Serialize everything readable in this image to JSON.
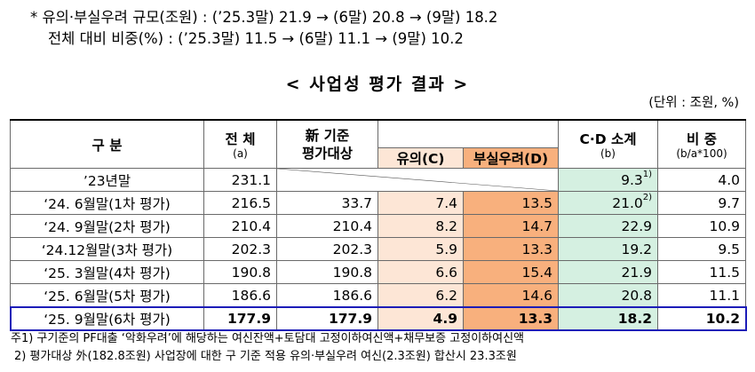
{
  "summary": {
    "line1": "*  유의·부실우려 규모(조원) : (’25.3말) 21.9 → (6말) 20.8 → (9말) 18.2",
    "line2": "전체 대비 비중(%) : (’25.3말) 11.5 → (6말) 11.1 → (9말) 10.2"
  },
  "title": "< 사업성 평가 결과 >",
  "unit": "(단위 : 조원, %)",
  "table": {
    "headers": {
      "gubun": "구 분",
      "total": "전 체",
      "total_sub": "(a)",
      "new_line1": "新 기준",
      "new_line2": "평가대상",
      "yui": "유의(C)",
      "bu": "부실우려(D)",
      "cd": "C·D 소계",
      "cd_sub": "(b)",
      "ratio": "비 중",
      "ratio_sub": "(b/a*100)"
    },
    "rows": [
      {
        "label": "’23년말",
        "total": "231.1",
        "new": "",
        "yui": "",
        "bu": "",
        "cd": "9.3",
        "cd_note": "1)",
        "ratio": "4.0",
        "merged": true
      },
      {
        "label": "‘24. 6월말(1차 평가)",
        "total": "216.5",
        "new": "33.7",
        "yui": "7.4",
        "bu": "13.5",
        "cd": "21.0",
        "cd_note": "2)",
        "ratio": "9.7"
      },
      {
        "label": "‘24. 9월말(2차 평가)",
        "total": "210.4",
        "new": "210.4",
        "yui": "8.2",
        "bu": "14.7",
        "cd": "22.9",
        "cd_note": "",
        "ratio": "10.9"
      },
      {
        "label": "‘24.12월말(3차 평가)",
        "total": "202.3",
        "new": "202.3",
        "yui": "5.9",
        "bu": "13.3",
        "cd": "19.2",
        "cd_note": "",
        "ratio": "9.5"
      },
      {
        "label": "‘25. 3월말(4차 평가)",
        "total": "190.8",
        "new": "190.8",
        "yui": "6.6",
        "bu": "15.4",
        "cd": "21.9",
        "cd_note": "",
        "ratio": "11.5"
      },
      {
        "label": "‘25. 6월말(5차 평가)",
        "total": "186.6",
        "new": "186.6",
        "yui": "6.2",
        "bu": "14.6",
        "cd": "20.8",
        "cd_note": "",
        "ratio": "11.1"
      },
      {
        "label": "‘25. 9월말(6차 평가)",
        "total": "177.9",
        "new": "177.9",
        "yui": "4.9",
        "bu": "13.3",
        "cd": "18.2",
        "cd_note": "",
        "ratio": "10.2"
      }
    ]
  },
  "footnotes": {
    "note1": "주1) 구기준의 PF대출 ‘악화우려’에 해당하는 여신잔액+토담대 고정이하여신액+채무보증 고정이하여신액",
    "note2": "2) 평가대상 外(182.8조원) 사업장에 대한 구 기준 적용 유의·부실우려 여신(2.3조원) 합산시 23.3조원"
  },
  "colors": {
    "yui_bg": "#fde6d6",
    "bu_bg": "#f8b07d",
    "cd_bg": "#d5f0e1",
    "highlight_border": "#1c1cb8"
  }
}
